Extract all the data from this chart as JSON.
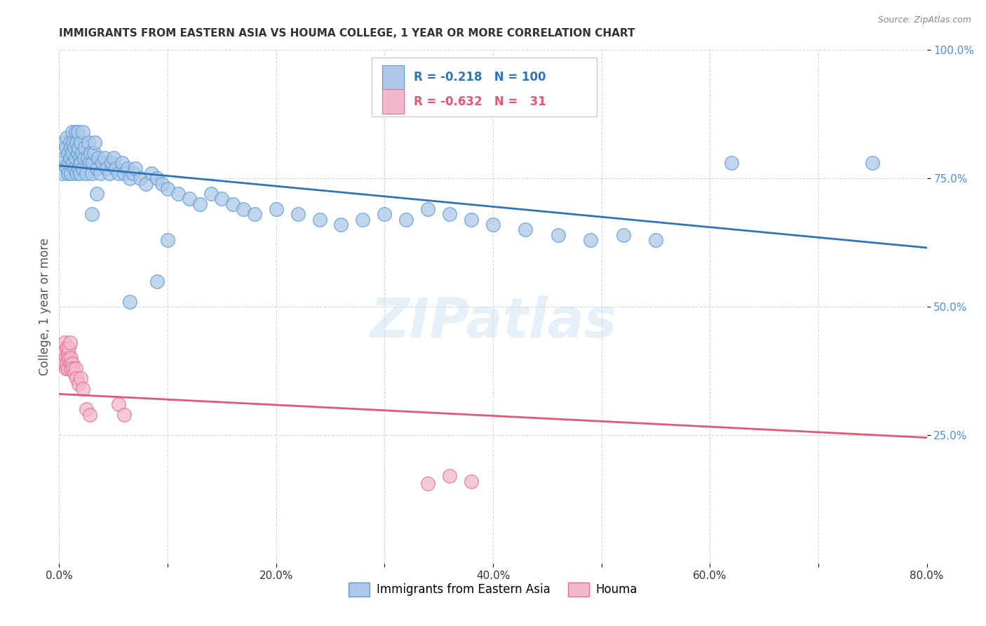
{
  "title": "IMMIGRANTS FROM EASTERN ASIA VS HOUMA COLLEGE, 1 YEAR OR MORE CORRELATION CHART",
  "source": "Source: ZipAtlas.com",
  "ylabel": "College, 1 year or more",
  "xlim": [
    0,
    0.8
  ],
  "ylim": [
    0,
    1.0
  ],
  "xtick_labels": [
    "0.0%",
    "",
    "20.0%",
    "",
    "40.0%",
    "",
    "60.0%",
    "",
    "80.0%"
  ],
  "xtick_values": [
    0,
    0.1,
    0.2,
    0.3,
    0.4,
    0.5,
    0.6,
    0.7,
    0.8
  ],
  "ytick_labels": [
    "25.0%",
    "50.0%",
    "75.0%",
    "100.0%"
  ],
  "ytick_values": [
    0.25,
    0.5,
    0.75,
    1.0
  ],
  "watermark": "ZIPatlas",
  "legend": {
    "blue_r": "-0.218",
    "blue_n": "100",
    "pink_r": "-0.632",
    "pink_n": "31"
  },
  "blue_color": "#adc8e8",
  "blue_edge_color": "#5b9bd5",
  "blue_line_color": "#2e75b6",
  "pink_color": "#f4b8cc",
  "pink_edge_color": "#e07090",
  "pink_line_color": "#e05878",
  "blue_scatter_x": [
    0.002,
    0.003,
    0.004,
    0.005,
    0.006,
    0.007,
    0.007,
    0.008,
    0.008,
    0.009,
    0.01,
    0.01,
    0.011,
    0.011,
    0.012,
    0.012,
    0.013,
    0.013,
    0.014,
    0.014,
    0.015,
    0.015,
    0.016,
    0.016,
    0.017,
    0.017,
    0.018,
    0.018,
    0.019,
    0.019,
    0.02,
    0.02,
    0.021,
    0.022,
    0.022,
    0.023,
    0.024,
    0.025,
    0.026,
    0.027,
    0.028,
    0.029,
    0.03,
    0.031,
    0.032,
    0.033,
    0.035,
    0.036,
    0.038,
    0.04,
    0.042,
    0.044,
    0.046,
    0.048,
    0.05,
    0.052,
    0.055,
    0.058,
    0.06,
    0.063,
    0.065,
    0.068,
    0.07,
    0.075,
    0.08,
    0.085,
    0.09,
    0.095,
    0.1,
    0.11,
    0.12,
    0.13,
    0.14,
    0.15,
    0.16,
    0.17,
    0.18,
    0.2,
    0.22,
    0.24,
    0.26,
    0.28,
    0.3,
    0.32,
    0.34,
    0.36,
    0.38,
    0.4,
    0.43,
    0.46,
    0.49,
    0.52,
    0.55,
    0.03,
    0.1,
    0.09,
    0.035,
    0.065,
    0.62,
    0.75
  ],
  "blue_scatter_y": [
    0.78,
    0.76,
    0.82,
    0.79,
    0.81,
    0.77,
    0.83,
    0.76,
    0.8,
    0.78,
    0.82,
    0.79,
    0.81,
    0.76,
    0.8,
    0.84,
    0.78,
    0.82,
    0.81,
    0.77,
    0.84,
    0.79,
    0.82,
    0.76,
    0.8,
    0.84,
    0.77,
    0.81,
    0.79,
    0.76,
    0.82,
    0.78,
    0.8,
    0.84,
    0.77,
    0.79,
    0.81,
    0.76,
    0.79,
    0.82,
    0.78,
    0.8,
    0.76,
    0.78,
    0.8,
    0.82,
    0.77,
    0.79,
    0.76,
    0.78,
    0.79,
    0.77,
    0.76,
    0.78,
    0.79,
    0.77,
    0.76,
    0.78,
    0.76,
    0.77,
    0.75,
    0.76,
    0.77,
    0.75,
    0.74,
    0.76,
    0.75,
    0.74,
    0.73,
    0.72,
    0.71,
    0.7,
    0.72,
    0.71,
    0.7,
    0.69,
    0.68,
    0.69,
    0.68,
    0.67,
    0.66,
    0.67,
    0.68,
    0.67,
    0.69,
    0.68,
    0.67,
    0.66,
    0.65,
    0.64,
    0.63,
    0.64,
    0.63,
    0.68,
    0.63,
    0.55,
    0.72,
    0.51,
    0.78,
    0.78
  ],
  "pink_scatter_x": [
    0.002,
    0.003,
    0.004,
    0.005,
    0.006,
    0.006,
    0.007,
    0.007,
    0.008,
    0.008,
    0.009,
    0.009,
    0.01,
    0.01,
    0.011,
    0.011,
    0.012,
    0.013,
    0.014,
    0.015,
    0.016,
    0.018,
    0.02,
    0.022,
    0.025,
    0.028,
    0.055,
    0.06,
    0.34,
    0.36,
    0.38
  ],
  "pink_scatter_y": [
    0.42,
    0.41,
    0.39,
    0.43,
    0.4,
    0.38,
    0.42,
    0.39,
    0.41,
    0.38,
    0.4,
    0.42,
    0.39,
    0.43,
    0.4,
    0.38,
    0.39,
    0.38,
    0.37,
    0.38,
    0.36,
    0.35,
    0.36,
    0.34,
    0.3,
    0.29,
    0.31,
    0.29,
    0.155,
    0.17,
    0.16
  ],
  "blue_trend_x": [
    0.0,
    0.8
  ],
  "blue_trend_y": [
    0.775,
    0.615
  ],
  "pink_trend_x": [
    0.0,
    0.8
  ],
  "pink_trend_y": [
    0.33,
    0.245
  ]
}
